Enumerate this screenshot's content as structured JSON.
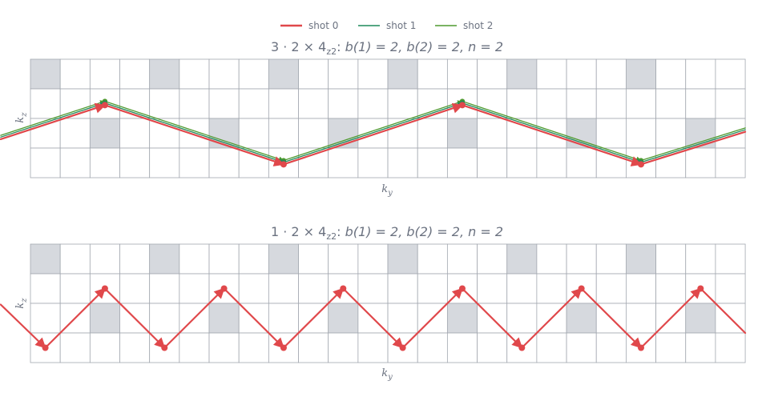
{
  "legend": [
    {
      "name": "shot 0",
      "color": "#e0484b"
    },
    {
      "name": "shot 1",
      "color": "#1f8a5a"
    },
    {
      "name": "shot 2",
      "color": "#4f9a2f"
    }
  ],
  "panels": [
    {
      "title": "3 · 2 × 4",
      "title_sub": "z2",
      "title_params": "b(1) = 2, b(2) = 2, n = 2",
      "xlabel": "k",
      "xlabel_sub": "y",
      "ylabel": "k",
      "ylabel_sub": "z",
      "grid": {
        "cols": 24,
        "rows": 4
      },
      "highlight_cells": [
        [
          0,
          0
        ],
        [
          4,
          0
        ],
        [
          8,
          0
        ],
        [
          12,
          0
        ],
        [
          16,
          0
        ],
        [
          20,
          0
        ],
        [
          2,
          2
        ],
        [
          6,
          2
        ],
        [
          10,
          2
        ],
        [
          14,
          2
        ],
        [
          18,
          2
        ],
        [
          22,
          2
        ]
      ],
      "series": [
        {
          "name": "shot 0",
          "color": "#e0484b",
          "width": 2.2,
          "markers": true,
          "points": [
            [
              -1,
              1.3
            ],
            [
              2.5,
              2.45
            ],
            [
              8.5,
              0.45
            ],
            [
              14.5,
              2.45
            ],
            [
              20.5,
              0.45
            ],
            [
              24,
              1.55
            ]
          ]
        },
        {
          "name": "shot 1",
          "color": "#1f8a5a",
          "width": 1.3,
          "markers": true,
          "points": [
            [
              -1,
              1.37
            ],
            [
              2.5,
              2.52
            ],
            [
              8.5,
              0.52
            ],
            [
              14.5,
              2.52
            ],
            [
              20.5,
              0.52
            ],
            [
              24,
              1.62
            ]
          ]
        },
        {
          "name": "shot 2",
          "color": "#4f9a2f",
          "width": 1.3,
          "markers": true,
          "points": [
            [
              -1,
              1.43
            ],
            [
              2.5,
              2.58
            ],
            [
              8.5,
              0.58
            ],
            [
              14.5,
              2.58
            ],
            [
              20.5,
              0.58
            ],
            [
              24,
              1.68
            ]
          ]
        }
      ]
    },
    {
      "title": "1 · 2 × 4",
      "title_sub": "z2",
      "title_params": "b(1) = 2, b(2) = 2, n = 2",
      "xlabel": "k",
      "xlabel_sub": "y",
      "ylabel": "k",
      "ylabel_sub": "z",
      "grid": {
        "cols": 24,
        "rows": 4
      },
      "highlight_cells": [
        [
          0,
          0
        ],
        [
          4,
          0
        ],
        [
          8,
          0
        ],
        [
          12,
          0
        ],
        [
          16,
          0
        ],
        [
          20,
          0
        ],
        [
          2,
          2
        ],
        [
          6,
          2
        ],
        [
          10,
          2
        ],
        [
          14,
          2
        ],
        [
          18,
          2
        ],
        [
          22,
          2
        ]
      ],
      "series": [
        {
          "name": "shot 0",
          "color": "#e0484b",
          "width": 2.2,
          "markers": true,
          "points": [
            [
              -1,
              1.96
            ],
            [
              0.5,
              0.5
            ],
            [
              2.5,
              2.5
            ],
            [
              4.5,
              0.5
            ],
            [
              6.5,
              2.5
            ],
            [
              8.5,
              0.5
            ],
            [
              10.5,
              2.5
            ],
            [
              12.5,
              0.5
            ],
            [
              14.5,
              2.5
            ],
            [
              16.5,
              0.5
            ],
            [
              18.5,
              2.5
            ],
            [
              20.5,
              0.5
            ],
            [
              22.5,
              2.5
            ],
            [
              24,
              1.0
            ]
          ]
        }
      ]
    }
  ]
}
